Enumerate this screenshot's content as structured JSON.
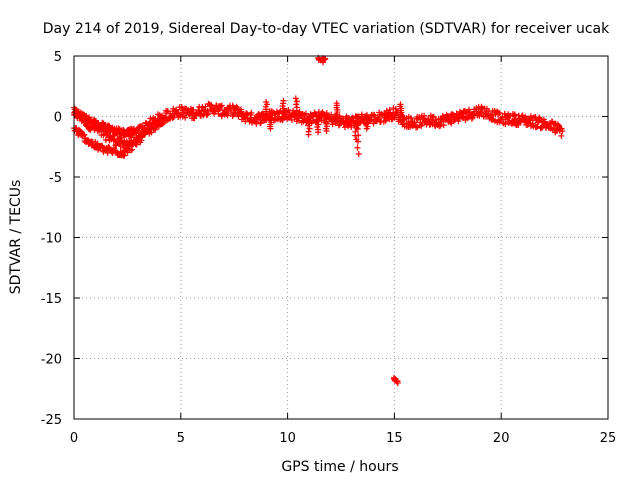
{
  "chart_data": {
    "type": "scatter",
    "title": "Day 214 of 2019, Sidereal Day-to-day VTEC variation (SDTVAR) for receiver ucak",
    "xlabel": "GPS time / hours",
    "ylabel": "SDTVAR / TECUs",
    "xlim": [
      0,
      25
    ],
    "ylim": [
      -25,
      5
    ],
    "xticks": [
      0,
      5,
      10,
      15,
      20,
      25
    ],
    "yticks": [
      5,
      0,
      -5,
      -10,
      -15,
      -20,
      -25
    ],
    "xtick_labels": [
      "0",
      "5",
      "10",
      "15",
      "20",
      "25"
    ],
    "ytick_labels": [
      "5",
      "0",
      "-5",
      "-10",
      "-15",
      "-20",
      "-25"
    ],
    "grid": true,
    "marker": "+",
    "color": "#ff0000",
    "series": [
      {
        "name": "SDTVAR",
        "trend": {
          "x": [
            0.0,
            0.3,
            0.7,
            1.0,
            1.5,
            2.0,
            2.3,
            2.7,
            3.0,
            3.5,
            4.0,
            4.5,
            5.0,
            5.5,
            6.0,
            6.5,
            7.0,
            7.5,
            8.0,
            8.5,
            9.0,
            9.5,
            10.0,
            10.5,
            11.0,
            11.5,
            12.0,
            12.5,
            13.0,
            13.5,
            14.0,
            14.5,
            15.0,
            15.5,
            16.0,
            16.5,
            17.0,
            17.5,
            18.0,
            18.5,
            19.0,
            19.5,
            20.0,
            20.5,
            21.0,
            21.5,
            22.0,
            22.5,
            22.9
          ],
          "y": [
            0.3,
            0.0,
            -0.6,
            -1.0,
            -1.5,
            -2.0,
            -2.3,
            -1.9,
            -1.3,
            -0.7,
            -0.2,
            0.2,
            0.4,
            0.2,
            0.5,
            0.7,
            0.4,
            0.5,
            0.0,
            -0.2,
            0.0,
            0.1,
            0.2,
            0.0,
            -0.2,
            0.0,
            -0.2,
            -0.4,
            -0.5,
            -0.2,
            -0.2,
            0.0,
            0.3,
            -0.4,
            -0.5,
            -0.3,
            -0.4,
            -0.2,
            0.0,
            0.2,
            0.5,
            0.2,
            -0.2,
            -0.2,
            -0.3,
            -0.4,
            -0.6,
            -0.9,
            -1.3
          ]
        },
        "lower_branch": {
          "x": [
            0.0,
            0.4,
            0.8,
            1.2,
            1.6,
            2.0,
            2.3,
            2.6,
            3.0,
            3.4,
            3.8,
            4.2
          ],
          "y": [
            -1.0,
            -1.6,
            -2.2,
            -2.6,
            -2.8,
            -2.9,
            -3.0,
            -2.6,
            -2.0,
            -1.4,
            -0.8,
            -0.3
          ]
        },
        "upper_branch": {
          "x": [
            0.0,
            0.5,
            1.0,
            1.5,
            2.0,
            2.4,
            2.8
          ],
          "y": [
            0.4,
            -0.1,
            -0.5,
            -0.9,
            -1.2,
            -1.4,
            -1.2
          ]
        },
        "spikes": [
          {
            "x": 9.0,
            "y": 1.2
          },
          {
            "x": 9.2,
            "y": -1.0
          },
          {
            "x": 9.8,
            "y": 1.3
          },
          {
            "x": 10.4,
            "y": 1.5
          },
          {
            "x": 11.0,
            "y": -1.5
          },
          {
            "x": 11.4,
            "y": -1.3
          },
          {
            "x": 11.8,
            "y": -1.2
          },
          {
            "x": 12.3,
            "y": 1.1
          },
          {
            "x": 12.8,
            "y": -0.8
          },
          {
            "x": 13.2,
            "y": -1.9
          },
          {
            "x": 13.3,
            "y": -3.1
          },
          {
            "x": 13.7,
            "y": -1.0
          },
          {
            "x": 15.3,
            "y": 1.0
          }
        ],
        "outliers": [
          {
            "x": 11.5,
            "y": 4.8
          },
          {
            "x": 11.6,
            "y": 4.6
          },
          {
            "x": 11.7,
            "y": 4.7
          },
          {
            "x": 15.0,
            "y": -21.7
          },
          {
            "x": 15.1,
            "y": -21.9
          }
        ]
      }
    ]
  }
}
